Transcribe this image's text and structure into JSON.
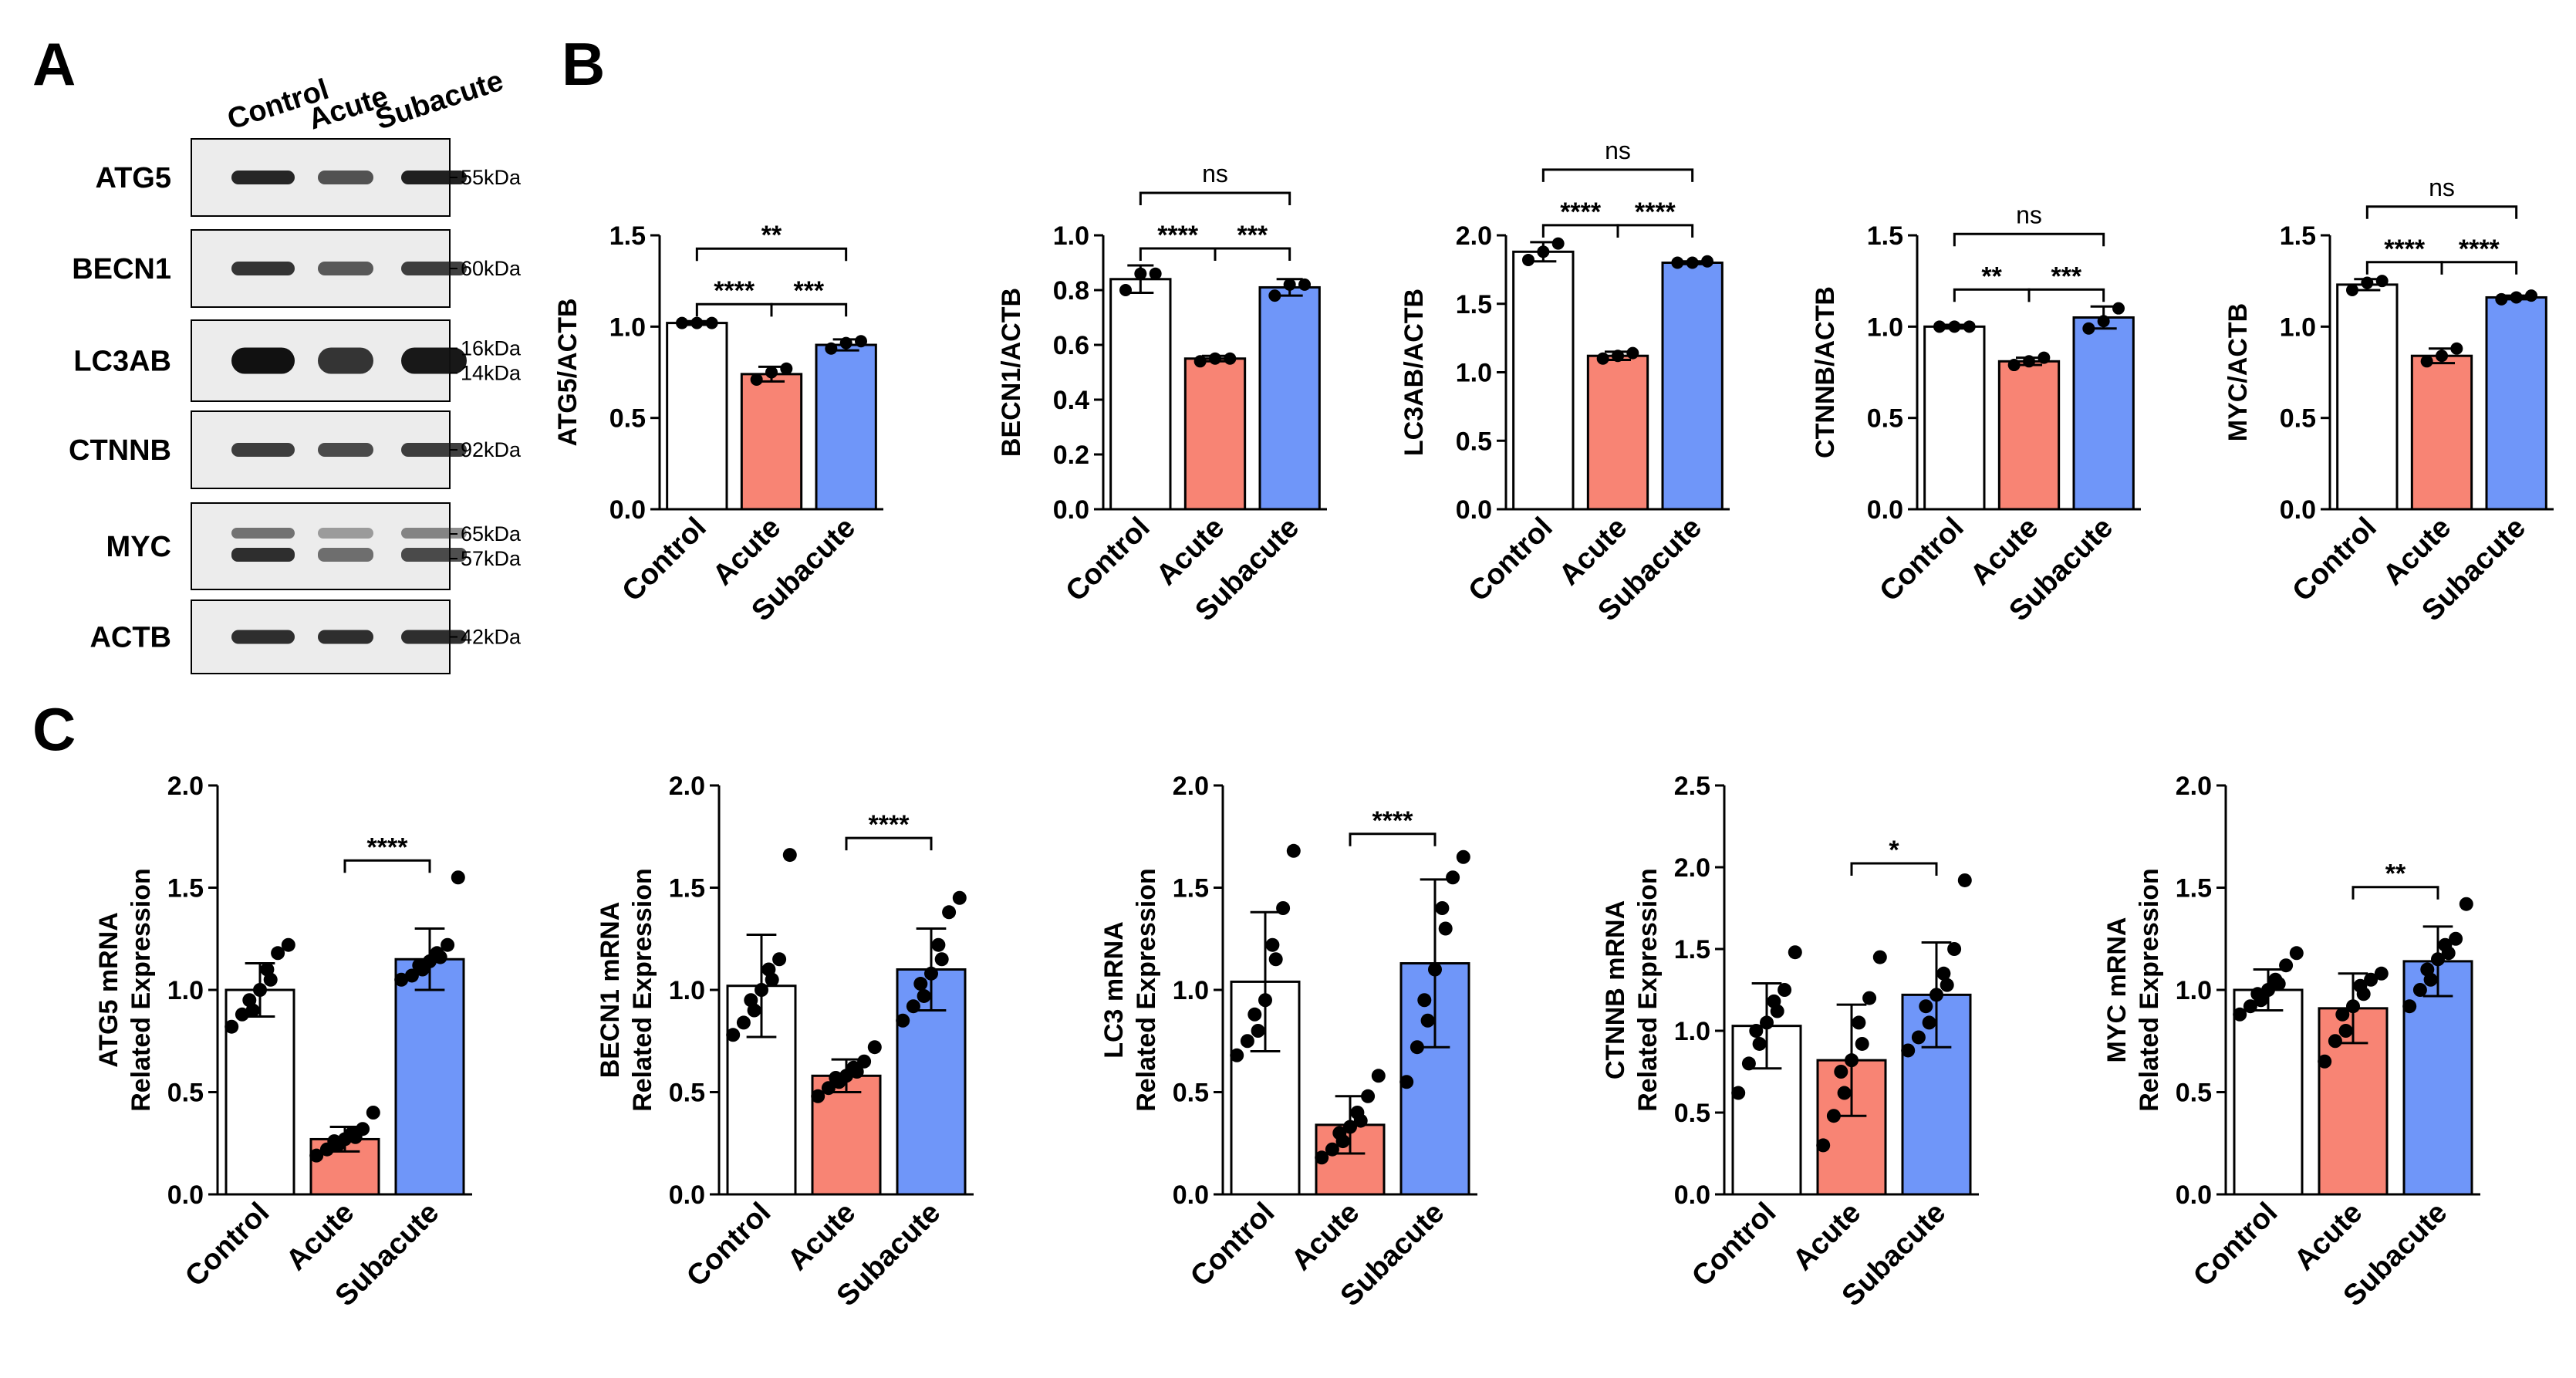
{
  "panel_letters": {
    "a": "A",
    "b": "B",
    "c": "C"
  },
  "colors": {
    "control": "#ffffff",
    "acute": "#f88474",
    "subacute": "#6f96f9",
    "edge": "#000000"
  },
  "western_blot": {
    "lanes": [
      "Control",
      "Acute",
      "Subacute"
    ],
    "rows": [
      {
        "name": "ATG5",
        "markers": [
          "55kDa"
        ],
        "intensity": [
          0.85,
          0.55,
          0.9
        ]
      },
      {
        "name": "BECN1",
        "markers": [
          "60kDa"
        ],
        "intensity": [
          0.75,
          0.5,
          0.7
        ]
      },
      {
        "name": "LC3AB",
        "markers": [
          "16kDa",
          "14kDa"
        ],
        "intensity": [
          1.0,
          0.75,
          0.95
        ]
      },
      {
        "name": "CTNNB",
        "markers": [
          "92kDa"
        ],
        "intensity": [
          0.7,
          0.6,
          0.7
        ]
      },
      {
        "name": "MYC",
        "markers": [
          "65kDa",
          "57kDa"
        ],
        "intensity": [
          0.8,
          0.35,
          0.6
        ]
      },
      {
        "name": "ACTB",
        "markers": [
          "42kDa"
        ],
        "intensity": [
          0.8,
          0.8,
          0.8
        ]
      }
    ]
  },
  "chart_data": [
    {
      "type": "bar",
      "ylabel": "ATG5/ACTB",
      "categories": [
        "Control",
        "Acute",
        "Subacute"
      ],
      "values": [
        1.02,
        0.74,
        0.9
      ],
      "sd": [
        0.01,
        0.04,
        0.03
      ],
      "points": [
        [
          1.02,
          1.02,
          1.02
        ],
        [
          0.71,
          0.75,
          0.77
        ],
        [
          0.88,
          0.91,
          0.92
        ]
      ],
      "ylim": [
        0,
        1.5
      ],
      "yticks": [
        "0.0",
        "0.5",
        "1.0",
        "1.5"
      ],
      "comparisons": [
        {
          "from": 0,
          "to": 1,
          "label": "****"
        },
        {
          "from": 1,
          "to": 2,
          "label": "***"
        },
        {
          "from": 0,
          "to": 2,
          "label": "**"
        }
      ]
    },
    {
      "type": "bar",
      "ylabel": "BECN1/ACTB",
      "categories": [
        "Control",
        "Acute",
        "Subacute"
      ],
      "values": [
        0.84,
        0.55,
        0.81
      ],
      "sd": [
        0.05,
        0.01,
        0.03
      ],
      "points": [
        [
          0.8,
          0.86,
          0.86
        ],
        [
          0.54,
          0.55,
          0.55
        ],
        [
          0.78,
          0.82,
          0.82
        ]
      ],
      "ylim": [
        0,
        1.0
      ],
      "yticks": [
        "0.0",
        "0.2",
        "0.4",
        "0.6",
        "0.8",
        "1.0"
      ],
      "comparisons": [
        {
          "from": 0,
          "to": 1,
          "label": "****"
        },
        {
          "from": 1,
          "to": 2,
          "label": "***"
        },
        {
          "from": 0,
          "to": 2,
          "label": "ns"
        }
      ]
    },
    {
      "type": "bar",
      "ylabel": "LC3AB/ACTB",
      "categories": [
        "Control",
        "Acute",
        "Subacute"
      ],
      "values": [
        1.88,
        1.12,
        1.8
      ],
      "sd": [
        0.07,
        0.03,
        0.01
      ],
      "points": [
        [
          1.82,
          1.88,
          1.94
        ],
        [
          1.1,
          1.12,
          1.14
        ],
        [
          1.8,
          1.8,
          1.81
        ]
      ],
      "ylim": [
        0,
        2.0
      ],
      "yticks": [
        "0.0",
        "0.5",
        "1.0",
        "1.5",
        "2.0"
      ],
      "comparisons": [
        {
          "from": 0,
          "to": 1,
          "label": "****"
        },
        {
          "from": 1,
          "to": 2,
          "label": "****"
        },
        {
          "from": 0,
          "to": 2,
          "label": "ns"
        }
      ]
    },
    {
      "type": "bar",
      "ylabel": "CTNNB/ACTB",
      "categories": [
        "Control",
        "Acute",
        "Subacute"
      ],
      "values": [
        1.0,
        0.81,
        1.05
      ],
      "sd": [
        0.01,
        0.02,
        0.06
      ],
      "points": [
        [
          1.0,
          1.0,
          1.0
        ],
        [
          0.79,
          0.81,
          0.83
        ],
        [
          0.99,
          1.03,
          1.1
        ]
      ],
      "ylim": [
        0,
        1.5
      ],
      "yticks": [
        "0.0",
        "0.5",
        "1.0",
        "1.5"
      ],
      "comparisons": [
        {
          "from": 0,
          "to": 1,
          "label": "**"
        },
        {
          "from": 1,
          "to": 2,
          "label": "***"
        },
        {
          "from": 0,
          "to": 2,
          "label": "ns"
        }
      ]
    },
    {
      "type": "bar",
      "ylabel": "MYC/ACTB",
      "categories": [
        "Control",
        "Acute",
        "Subacute"
      ],
      "values": [
        1.23,
        0.84,
        1.16
      ],
      "sd": [
        0.03,
        0.04,
        0.01
      ],
      "points": [
        [
          1.2,
          1.24,
          1.25
        ],
        [
          0.81,
          0.84,
          0.88
        ],
        [
          1.15,
          1.16,
          1.17
        ]
      ],
      "ylim": [
        0,
        1.5
      ],
      "yticks": [
        "0.0",
        "0.5",
        "1.0",
        "1.5"
      ],
      "comparisons": [
        {
          "from": 0,
          "to": 1,
          "label": "****"
        },
        {
          "from": 1,
          "to": 2,
          "label": "****"
        },
        {
          "from": 0,
          "to": 2,
          "label": "ns"
        }
      ]
    },
    {
      "type": "bar",
      "ylabel": [
        "ATG5 mRNA",
        "Related Expression"
      ],
      "categories": [
        "Control",
        "Acute",
        "Subacute"
      ],
      "values": [
        1.0,
        0.27,
        1.15
      ],
      "sd": [
        0.13,
        0.06,
        0.15
      ],
      "points": [
        [
          0.82,
          0.88,
          0.9,
          0.95,
          1.0,
          1.05,
          1.1,
          1.18,
          1.22
        ],
        [
          0.19,
          0.22,
          0.24,
          0.26,
          0.27,
          0.28,
          0.3,
          0.32,
          0.4
        ],
        [
          1.05,
          1.07,
          1.1,
          1.12,
          1.14,
          1.16,
          1.18,
          1.22,
          1.55
        ]
      ],
      "ylim": [
        0,
        2.0
      ],
      "yticks": [
        "0.0",
        "0.5",
        "1.0",
        "1.5",
        "2.0"
      ],
      "comparisons": [
        {
          "from": 1,
          "to": 2,
          "label": "****"
        }
      ]
    },
    {
      "type": "bar",
      "ylabel": [
        "BECN1 mRNA",
        "Related Expression"
      ],
      "categories": [
        "Control",
        "Acute",
        "Subacute"
      ],
      "values": [
        1.02,
        0.58,
        1.1
      ],
      "sd": [
        0.25,
        0.08,
        0.2
      ],
      "points": [
        [
          0.78,
          0.84,
          0.9,
          0.95,
          1.0,
          1.05,
          1.1,
          1.15,
          1.66
        ],
        [
          0.48,
          0.52,
          0.55,
          0.57,
          0.58,
          0.6,
          0.62,
          0.65,
          0.72
        ],
        [
          0.85,
          0.92,
          0.97,
          1.03,
          1.08,
          1.15,
          1.22,
          1.38,
          1.45
        ]
      ],
      "ylim": [
        0,
        2.0
      ],
      "yticks": [
        "0.0",
        "0.5",
        "1.0",
        "1.5",
        "2.0"
      ],
      "comparisons": [
        {
          "from": 1,
          "to": 2,
          "label": "****"
        }
      ]
    },
    {
      "type": "bar",
      "ylabel": [
        "LC3 mRNA",
        "Related Expression"
      ],
      "categories": [
        "Control",
        "Acute",
        "Subacute"
      ],
      "values": [
        1.04,
        0.34,
        1.13
      ],
      "sd": [
        0.34,
        0.14,
        0.41
      ],
      "points": [
        [
          0.68,
          0.75,
          0.8,
          0.88,
          0.95,
          1.15,
          1.22,
          1.4,
          1.68
        ],
        [
          0.18,
          0.22,
          0.26,
          0.3,
          0.33,
          0.36,
          0.4,
          0.48,
          0.58
        ],
        [
          0.55,
          0.72,
          0.85,
          0.95,
          1.1,
          1.3,
          1.4,
          1.55,
          1.65
        ]
      ],
      "ylim": [
        0,
        2.0
      ],
      "yticks": [
        "0.0",
        "0.5",
        "1.0",
        "1.5",
        "2.0"
      ],
      "comparisons": [
        {
          "from": 1,
          "to": 2,
          "label": "****"
        }
      ]
    },
    {
      "type": "bar",
      "ylabel": [
        "CTNNB mRNA",
        "Related Expression"
      ],
      "categories": [
        "Control",
        "Acute",
        "Subacute"
      ],
      "values": [
        1.03,
        0.82,
        1.22
      ],
      "sd": [
        0.26,
        0.34,
        0.32
      ],
      "points": [
        [
          0.62,
          0.8,
          0.92,
          1.0,
          1.05,
          1.12,
          1.18,
          1.25,
          1.48
        ],
        [
          0.3,
          0.48,
          0.62,
          0.75,
          0.82,
          0.92,
          1.05,
          1.2,
          1.45
        ],
        [
          0.88,
          0.96,
          1.05,
          1.15,
          1.22,
          1.28,
          1.35,
          1.5,
          1.92
        ]
      ],
      "ylim": [
        0,
        2.5
      ],
      "yticks": [
        "0.0",
        "0.5",
        "1.0",
        "1.5",
        "2.0",
        "2.5"
      ],
      "comparisons": [
        {
          "from": 1,
          "to": 2,
          "label": "*"
        }
      ]
    },
    {
      "type": "bar",
      "ylabel": [
        "MYC mRNA",
        "Related Expression"
      ],
      "categories": [
        "Control",
        "Acute",
        "Subacute"
      ],
      "values": [
        1.0,
        0.91,
        1.14
      ],
      "sd": [
        0.1,
        0.17,
        0.17
      ],
      "points": [
        [
          0.88,
          0.92,
          0.95,
          0.98,
          1.0,
          1.03,
          1.05,
          1.12,
          1.18
        ],
        [
          0.65,
          0.75,
          0.8,
          0.88,
          0.92,
          0.98,
          1.02,
          1.05,
          1.08
        ],
        [
          0.92,
          1.0,
          1.05,
          1.1,
          1.15,
          1.18,
          1.22,
          1.25,
          1.42
        ]
      ],
      "ylim": [
        0,
        2.0
      ],
      "yticks": [
        "0.0",
        "0.5",
        "1.0",
        "1.5",
        "2.0"
      ],
      "comparisons": [
        {
          "from": 1,
          "to": 2,
          "label": "**"
        }
      ]
    }
  ]
}
